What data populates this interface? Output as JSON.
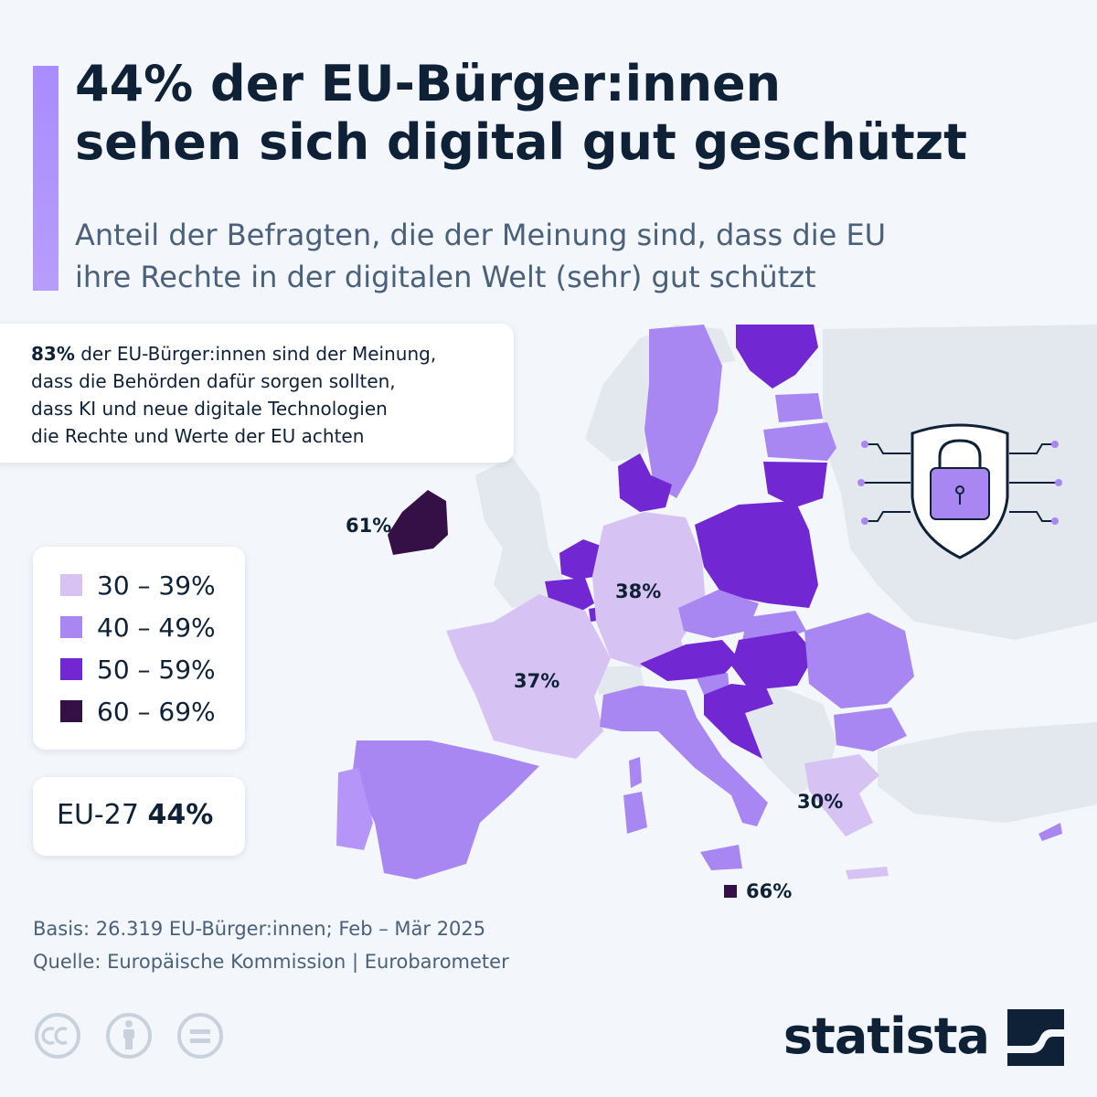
{
  "title_lines": [
    "44% der EU-Bürger:innen",
    "sehen sich digital gut geschützt"
  ],
  "subtitle_lines": [
    "Anteil der Befragten, die der Meinung sind, dass die EU",
    "ihre Rechte in der digitalen Welt (sehr) gut schützt"
  ],
  "info_box": {
    "highlight": "83%",
    "line1_rest": " der EU-Bürger:innen sind der Meinung,",
    "line2": "dass die Behörden dafür sorgen sollten,",
    "line3": "dass KI und neue digitale Technologien",
    "line4": "die Rechte und Werte der EU achten"
  },
  "legend": [
    {
      "label": "30 – 39%",
      "color": "#d6c3f4"
    },
    {
      "label": "40 – 49%",
      "color": "#a887f2"
    },
    {
      "label": "50 – 59%",
      "color": "#7128d3"
    },
    {
      "label": "60 – 69%",
      "color": "#341046"
    }
  ],
  "eu_total": {
    "label": "EU-27 ",
    "value": "44%"
  },
  "map_labels": {
    "ireland": "61%",
    "germany": "38%",
    "france": "37%",
    "greece": "30%",
    "malta": "66%"
  },
  "map_colors": {
    "light": "#d6c3f4",
    "mid": "#a887f2",
    "dark": "#7128d3",
    "darkest": "#341046",
    "non_eu": "#e3e8ee",
    "sea": "#f3f6fa"
  },
  "footer": {
    "basis": "Basis: 26.319 EU-Bürger:innen; Feb – Mär 2025",
    "source": "Quelle: Europäische Kommission | Eurobarometer"
  },
  "brand": "statista",
  "icons": [
    "shield-lock-icon",
    "cc-license-icon",
    "attribution-icon",
    "no-derivatives-icon",
    "statista-logo-icon"
  ]
}
